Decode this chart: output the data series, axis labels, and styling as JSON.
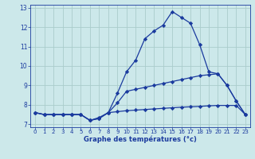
{
  "title": "Graphe des températures (°c)",
  "bg_color": "#cce8ea",
  "grid_color": "#aacccc",
  "line_color": "#1a3a9e",
  "xlim": [
    -0.5,
    23.5
  ],
  "ylim": [
    6.85,
    13.15
  ],
  "yticks": [
    7,
    8,
    9,
    10,
    11,
    12,
    13
  ],
  "xticks": [
    0,
    1,
    2,
    3,
    4,
    5,
    6,
    7,
    8,
    9,
    10,
    11,
    12,
    13,
    14,
    15,
    16,
    17,
    18,
    19,
    20,
    21,
    22,
    23
  ],
  "series1_x": [
    0,
    1,
    2,
    3,
    4,
    5,
    6,
    7,
    8,
    9,
    10,
    11,
    12,
    13,
    14,
    15,
    16,
    17,
    18,
    19,
    20,
    21,
    22,
    23
  ],
  "series1_y": [
    7.6,
    7.5,
    7.5,
    7.5,
    7.5,
    7.5,
    7.2,
    7.3,
    7.6,
    8.6,
    9.7,
    10.3,
    11.4,
    11.8,
    12.1,
    12.8,
    12.5,
    12.2,
    11.1,
    9.7,
    9.6,
    9.0,
    8.2,
    7.5
  ],
  "series2_x": [
    0,
    1,
    2,
    3,
    4,
    5,
    6,
    7,
    8,
    9,
    10,
    11,
    12,
    13,
    14,
    15,
    16,
    17,
    18,
    19,
    20,
    21,
    22,
    23
  ],
  "series2_y": [
    7.6,
    7.5,
    7.5,
    7.5,
    7.5,
    7.5,
    7.2,
    7.3,
    7.6,
    8.1,
    8.7,
    8.8,
    8.9,
    9.0,
    9.1,
    9.2,
    9.3,
    9.4,
    9.5,
    9.55,
    9.6,
    9.0,
    8.2,
    7.5
  ],
  "series3_x": [
    0,
    1,
    2,
    3,
    4,
    5,
    6,
    7,
    8,
    9,
    10,
    11,
    12,
    13,
    14,
    15,
    16,
    17,
    18,
    19,
    20,
    21,
    22,
    23
  ],
  "series3_y": [
    7.6,
    7.5,
    7.5,
    7.5,
    7.5,
    7.5,
    7.2,
    7.35,
    7.6,
    7.65,
    7.7,
    7.73,
    7.76,
    7.79,
    7.82,
    7.85,
    7.88,
    7.9,
    7.92,
    7.95,
    7.97,
    7.97,
    7.97,
    7.5
  ]
}
